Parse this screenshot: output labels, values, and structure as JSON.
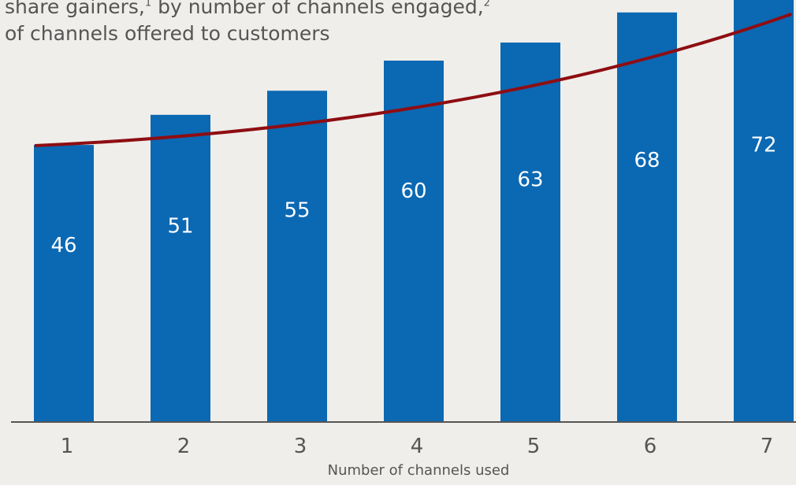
{
  "header": {
    "line1": "share gainers,",
    "sup1": "1",
    "line1b": " by number of channels engaged,",
    "sup2": "2",
    "line2": "of channels offered to customers"
  },
  "colors": {
    "bar": "#0b68b3",
    "trend_arrow": "#8e0d12",
    "axis": "#555555",
    "background": "#efeeea"
  },
  "chart_data": {
    "type": "bar",
    "title": "",
    "xlabel": "Number of channels used",
    "ylabel": "",
    "categories": [
      "1",
      "2",
      "3",
      "4",
      "5",
      "6",
      "7"
    ],
    "values": [
      46,
      51,
      55,
      60,
      63,
      68,
      72
    ],
    "ylim": [
      0,
      80
    ],
    "grid": false,
    "legend": "none",
    "data_labels": true,
    "annotation": "increasing-trend-arrow"
  }
}
